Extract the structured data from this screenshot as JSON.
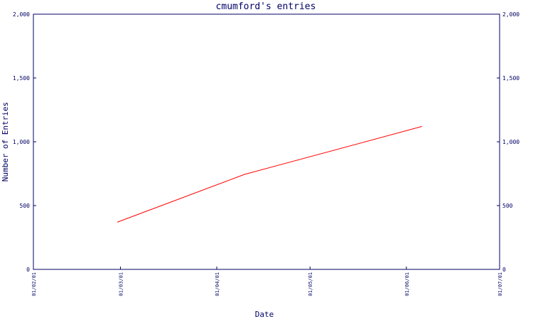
{
  "chart_data": {
    "type": "line",
    "title": "cmumford's entries",
    "xlabel": "Date",
    "ylabel": "Number of Entries",
    "x_ticks": [
      "01/02/01",
      "01/03/01",
      "01/04/01",
      "01/05/01",
      "01/06/01",
      "01/07/01"
    ],
    "y_ticks": [
      "0",
      "500",
      "1,000",
      "1,500",
      "2,000"
    ],
    "y_ticks_right": [
      "0",
      "500",
      "1,000",
      "1,500",
      "2,000"
    ],
    "ylim": [
      0,
      2000
    ],
    "xlim": [
      "2001-02-01",
      "2001-07-01"
    ],
    "grid": false,
    "colors": {
      "axis": "#000066",
      "line": "#ff0000",
      "background": "#ffffff"
    },
    "series": [
      {
        "x": [
          "2001-02-28",
          "2001-04-10",
          "2001-06-06"
        ],
        "y": [
          370,
          745,
          1120
        ]
      }
    ]
  }
}
